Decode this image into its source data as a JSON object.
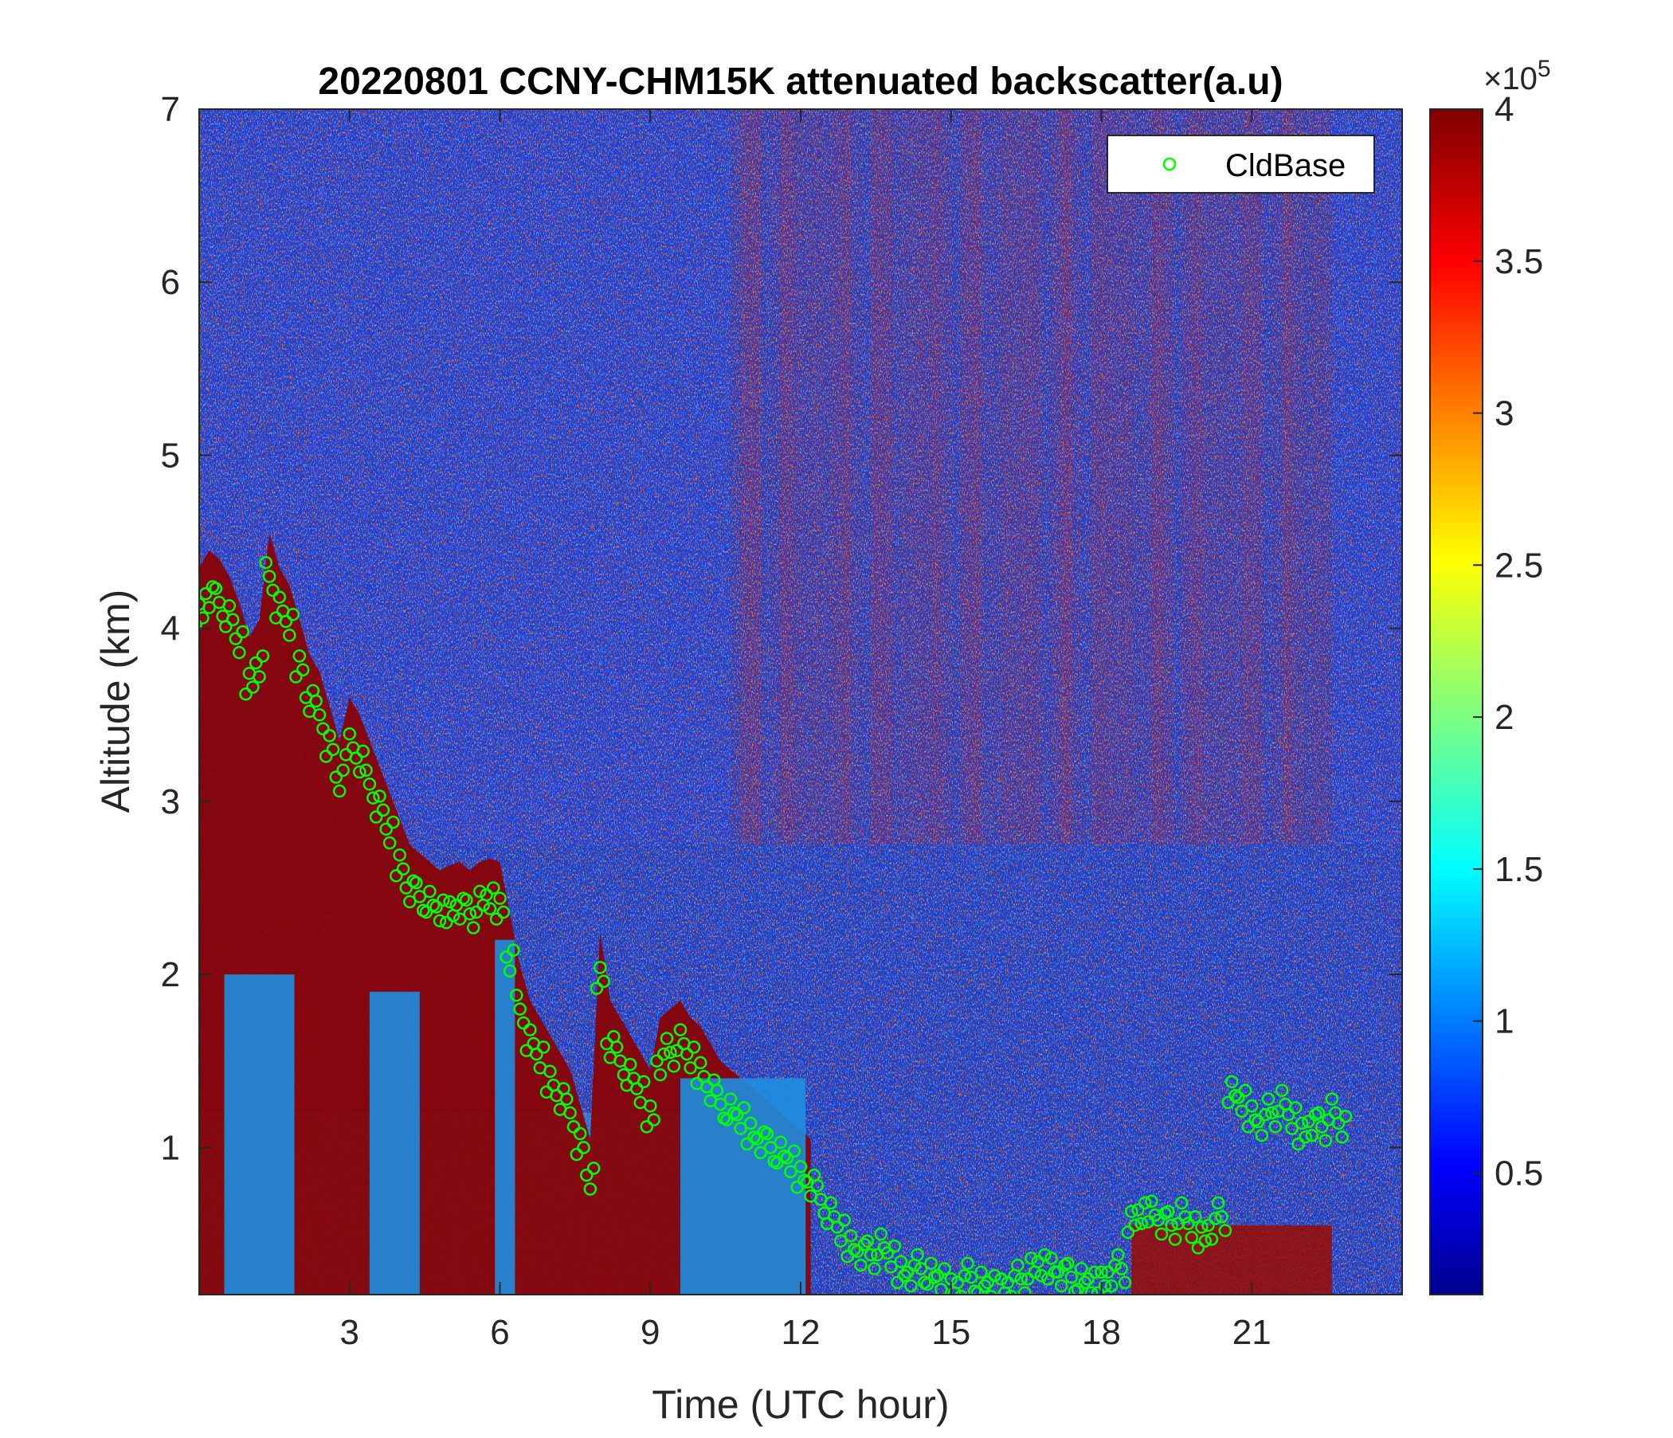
{
  "chart_data": {
    "type": "heatmap",
    "title": "20220801 CCNY-CHM15K attenuated backscatter(a.u)",
    "xlabel": "Time (UTC hour)",
    "ylabel": "Altitude (km)",
    "xlim": [
      0,
      24
    ],
    "ylim": [
      0.15,
      7
    ],
    "x_ticks": [
      3,
      6,
      9,
      12,
      15,
      18,
      21
    ],
    "x_tick_labels": [
      "3",
      "6",
      "9",
      "12",
      "15",
      "18",
      "21"
    ],
    "y_ticks": [
      1,
      2,
      3,
      4,
      5,
      6,
      7
    ],
    "y_tick_labels": [
      "1",
      "2",
      "3",
      "4",
      "5",
      "6",
      "7"
    ],
    "colorbar": {
      "colormap": "jet",
      "clim": [
        0.1,
        4
      ],
      "ticks": [
        0.5,
        1,
        1.5,
        2,
        2.5,
        3,
        3.5,
        4
      ],
      "tick_labels": [
        "0.5",
        "1",
        "1.5",
        "2",
        "2.5",
        "3",
        "3.5",
        "4"
      ],
      "multiplier_base": "×10",
      "multiplier_exponent": "5"
    },
    "legend": {
      "placement": "top-right",
      "entries": [
        "CldBase"
      ]
    },
    "series": [
      {
        "name": "CldBase",
        "marker": "circle-open",
        "color": "#00ff00",
        "x": [
          0.0,
          0.2,
          0.4,
          0.6,
          0.8,
          1.0,
          1.2,
          1.4,
          1.6,
          1.8,
          2.0,
          2.2,
          2.4,
          2.6,
          2.8,
          3.0,
          3.2,
          3.4,
          3.6,
          3.8,
          4.0,
          4.2,
          4.4,
          4.6,
          4.8,
          5.0,
          5.2,
          5.4,
          5.6,
          5.8,
          6.0,
          6.2,
          6.4,
          6.6,
          6.8,
          7.0,
          7.2,
          7.4,
          7.6,
          7.8,
          8.0,
          8.2,
          8.4,
          8.6,
          8.8,
          9.0,
          9.2,
          9.4,
          9.6,
          9.8,
          10.0,
          10.2,
          10.4,
          10.6,
          10.8,
          11.0,
          11.2,
          11.4,
          11.6,
          11.8,
          12.0,
          12.2,
          12.4,
          12.6,
          12.8,
          13.0,
          13.2,
          13.4,
          13.6,
          13.8,
          14.0,
          14.2,
          14.4,
          14.6,
          14.8,
          15.0,
          15.2,
          15.4,
          15.6,
          15.8,
          16.0,
          16.2,
          16.4,
          16.6,
          16.8,
          17.0,
          17.2,
          17.4,
          17.6,
          17.8,
          18.0,
          18.2,
          18.4,
          18.6,
          18.8,
          19.0,
          19.2,
          19.4,
          19.6,
          19.8,
          20.0,
          20.2,
          20.4,
          20.6,
          20.8,
          21.0,
          21.2,
          21.4,
          21.6,
          21.8,
          22.0,
          22.2,
          22.4,
          22.6,
          22.8
        ],
        "y": [
          4.1,
          4.2,
          4.15,
          4.05,
          3.9,
          3.7,
          3.8,
          4.3,
          4.1,
          4.0,
          3.8,
          3.6,
          3.5,
          3.3,
          3.1,
          3.35,
          3.25,
          3.1,
          2.95,
          2.8,
          2.65,
          2.5,
          2.45,
          2.4,
          2.35,
          2.38,
          2.4,
          2.35,
          2.4,
          2.42,
          2.4,
          2.1,
          1.8,
          1.6,
          1.5,
          1.4,
          1.3,
          1.2,
          1.0,
          0.8,
          2.0,
          1.6,
          1.5,
          1.4,
          1.3,
          1.2,
          1.5,
          1.55,
          1.6,
          1.5,
          1.45,
          1.35,
          1.25,
          1.2,
          1.15,
          1.1,
          1.05,
          1.0,
          0.95,
          0.9,
          0.85,
          0.8,
          0.7,
          0.6,
          0.5,
          0.45,
          0.4,
          0.38,
          0.42,
          0.35,
          0.3,
          0.28,
          0.3,
          0.25,
          0.22,
          0.2,
          0.22,
          0.25,
          0.2,
          0.18,
          0.2,
          0.22,
          0.24,
          0.28,
          0.3,
          0.32,
          0.28,
          0.25,
          0.22,
          0.2,
          0.24,
          0.28,
          0.3,
          0.55,
          0.6,
          0.65,
          0.58,
          0.55,
          0.6,
          0.52,
          0.5,
          0.55,
          0.6,
          1.3,
          1.25,
          1.2,
          1.15,
          1.2,
          1.25,
          1.15,
          1.1,
          1.15,
          1.12,
          1.2,
          1.1
        ]
      }
    ]
  }
}
